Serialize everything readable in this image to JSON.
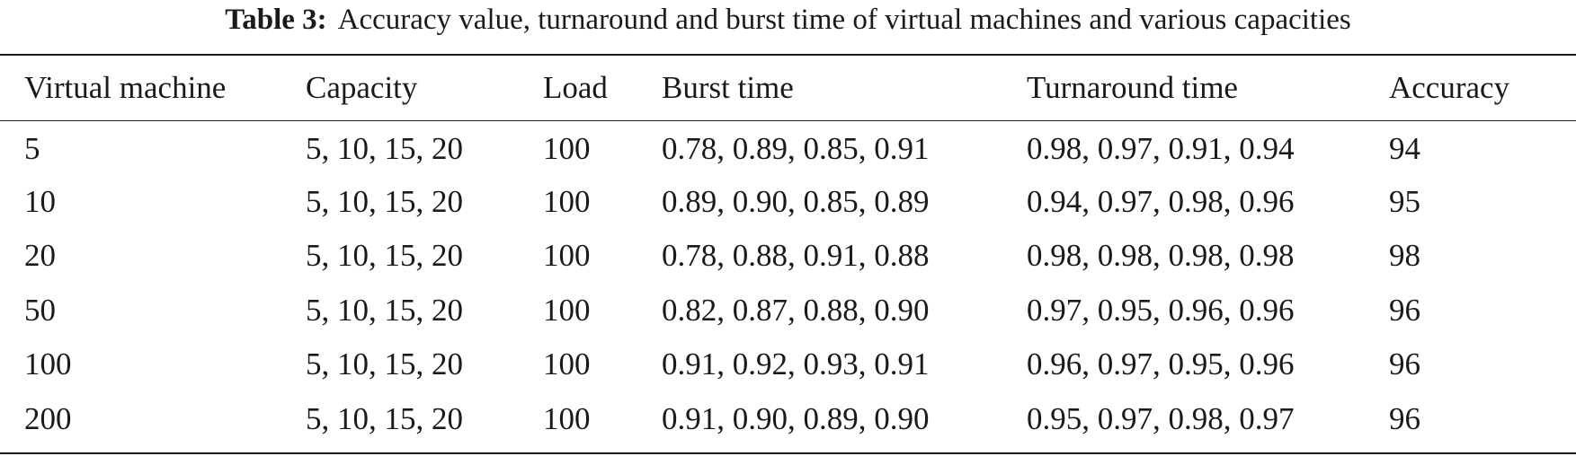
{
  "caption": {
    "label": "Table 3:",
    "text": "Accuracy value, turnaround and burst time of virtual machines and various capacities"
  },
  "table": {
    "columns": [
      "Virtual machine",
      "Capacity",
      "Load",
      "Burst time",
      "Turnaround time",
      "Accuracy"
    ],
    "rows": [
      [
        "5",
        "5, 10, 15, 20",
        "100",
        "0.78, 0.89, 0.85, 0.91",
        "0.98, 0.97, 0.91, 0.94",
        "94"
      ],
      [
        "10",
        "5, 10, 15, 20",
        "100",
        "0.89, 0.90, 0.85, 0.89",
        "0.94, 0.97, 0.98, 0.96",
        "95"
      ],
      [
        "20",
        "5, 10, 15, 20",
        "100",
        "0.78, 0.88, 0.91, 0.88",
        "0.98, 0.98, 0.98, 0.98",
        "98"
      ],
      [
        "50",
        "5, 10, 15, 20",
        "100",
        "0.82, 0.87, 0.88, 0.90",
        "0.97, 0.95, 0.96, 0.96",
        "96"
      ],
      [
        "100",
        "5, 10, 15, 20",
        "100",
        "0.91, 0.92, 0.93, 0.91",
        "0.96, 0.97, 0.95, 0.96",
        "96"
      ],
      [
        "200",
        "5, 10, 15, 20",
        "100",
        "0.91, 0.90, 0.89, 0.90",
        "0.95, 0.97, 0.98, 0.97",
        "96"
      ]
    ]
  }
}
